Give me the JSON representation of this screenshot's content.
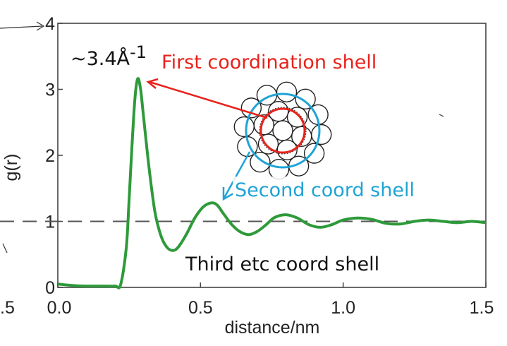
{
  "chart_data": {
    "type": "line",
    "xlabel": "distance/nm",
    "ylabel": "g(r)",
    "xlim": [
      0.0,
      1.5
    ],
    "ylim": [
      0,
      4
    ],
    "x_ticks": [
      "0.0",
      "0.5",
      "1.0",
      "1.5"
    ],
    "y_ticks": [
      "0",
      "1",
      "2",
      "3",
      "4"
    ],
    "reference_line": {
      "y": 1,
      "style": "dashed"
    },
    "series": [
      {
        "color": "#2e9a3a",
        "x": [
          0.0,
          0.05,
          0.1,
          0.15,
          0.2,
          0.22,
          0.24,
          0.25,
          0.26,
          0.27,
          0.28,
          0.29,
          0.3,
          0.32,
          0.34,
          0.36,
          0.38,
          0.4,
          0.42,
          0.45,
          0.48,
          0.51,
          0.54,
          0.56,
          0.58,
          0.61,
          0.64,
          0.67,
          0.7,
          0.73,
          0.76,
          0.8,
          0.84,
          0.88,
          0.92,
          0.96,
          1.0,
          1.05,
          1.1,
          1.15,
          1.2,
          1.25,
          1.3,
          1.35,
          1.4,
          1.45,
          1.5
        ],
        "y": [
          0.05,
          0.03,
          0.02,
          0.02,
          0.02,
          0.04,
          0.6,
          1.35,
          2.15,
          2.85,
          3.16,
          3.0,
          2.6,
          1.8,
          1.15,
          0.8,
          0.62,
          0.56,
          0.6,
          0.8,
          1.05,
          1.22,
          1.28,
          1.24,
          1.12,
          0.95,
          0.84,
          0.8,
          0.85,
          0.95,
          1.06,
          1.1,
          1.05,
          0.95,
          0.91,
          0.95,
          1.02,
          1.05,
          1.03,
          0.97,
          0.96,
          1.0,
          1.02,
          1.0,
          0.98,
          1.0,
          0.98
        ]
      }
    ]
  },
  "annotations": {
    "peak_value": "~3.4Å",
    "peak_superscript": "-1",
    "first_shell": "First coordination shell",
    "second_shell": "Second coord shell",
    "third_shell": "Third etc coord shell",
    "left_tick_fragment": ".5",
    "colors": {
      "first": "#e8221b",
      "second": "#1fa3d6",
      "third": "#111111",
      "curve": "#2e9a3a"
    }
  }
}
